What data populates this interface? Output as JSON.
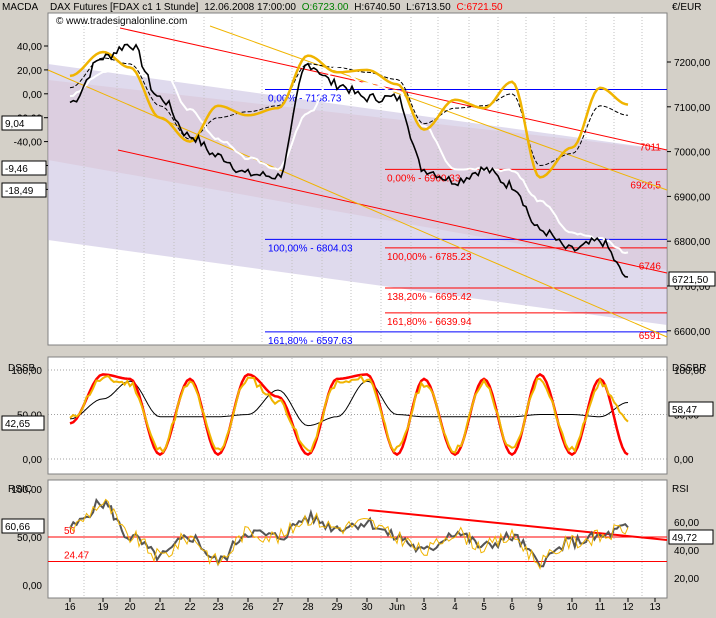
{
  "header": {
    "instrument": "DAX Futures [FDAX c1  1 Stunde]",
    "datetime": "12.06.2008 17:00:00",
    "open": "O:6723.00",
    "high": "H:6740.50",
    "low": "L:6713.50",
    "close": "C:6721.50",
    "watermark": "© www.tradesignalonline.com"
  },
  "colors": {
    "price": "#000000",
    "macd": "#f0b400",
    "signal": "#000000",
    "white_line": "#ffffff",
    "channel": "#ff0000",
    "fib_blue": "#0000ff",
    "fib_red": "#ff0000",
    "stoch_red": "#ff0000",
    "stoch_yellow": "#f0b400",
    "stoch_black": "#000000",
    "rsi_dark": "#555555",
    "rsi_yellow": "#f0b400",
    "bg": "#d4d0c8"
  },
  "panes": {
    "main": {
      "left_label": "MACDA",
      "right_label": "€/EUR",
      "macd_ticks": [
        "40,00",
        "20,00",
        "0,00",
        "-20,00",
        "-40,00",
        "-60,00",
        "-80,00"
      ],
      "price_ticks": [
        "7200,00",
        "7100,00",
        "7000,00",
        "6900,00",
        "6800,00",
        "6700,00",
        "6600,00"
      ],
      "left_badges": [
        "9,04",
        "-9,46",
        "-18,49"
      ],
      "right_badge": "6721,50",
      "fib_blue": [
        {
          "label": "0,00% - 7138.73",
          "price": 7138.73
        },
        {
          "label": "100,00% - 6804.03",
          "price": 6804.03
        },
        {
          "label": "161,80% - 6597.63",
          "price": 6597.63
        }
      ],
      "fib_red": [
        {
          "label": "0,00% - 6960.33",
          "price": 6960.33
        },
        {
          "label": "100,00% - 6785.23",
          "price": 6785.23
        },
        {
          "label": "138,20% - 6695.42",
          "price": 6695.42
        },
        {
          "label": "161,80% - 6639.94",
          "price": 6639.94
        }
      ],
      "level_labels": [
        {
          "text": "7011",
          "price": 7011
        },
        {
          "text": "6926,5",
          "price": 6926.5
        },
        {
          "text": "6746",
          "price": 6746
        },
        {
          "text": "6591",
          "price": 6591
        }
      ]
    },
    "stoch": {
      "left_label": "DSSB",
      "right_label": "DSSBR",
      "left_ticks": [
        "100,00",
        "50,00",
        "0,00"
      ],
      "right_ticks": [
        "100,00",
        "50,00",
        "0,00"
      ],
      "left_badge": "42,65",
      "right_badge": "58,47"
    },
    "rsi": {
      "left_label": "RSIC",
      "right_label": "RSI",
      "left_ticks": [
        "100,00",
        "50,00",
        "0,00"
      ],
      "right_ticks": [
        "60,00",
        "40,00",
        "20,00"
      ],
      "left_badge": "60,66",
      "right_badge": "49,72",
      "line_labels": [
        {
          "text": "50",
          "value": 50
        },
        {
          "text": "24.47",
          "value": 24.47
        }
      ]
    }
  },
  "xaxis": {
    "labels": [
      "16",
      "19",
      "20",
      "21",
      "22",
      "23",
      "26",
      "27",
      "28",
      "29",
      "30",
      "Jun",
      "3",
      "4",
      "5",
      "6",
      "9",
      "10",
      "11",
      "12",
      "13"
    ]
  },
  "chart_data": [
    {
      "type": "line",
      "title": "DAX Futures [FDAX c1  1 Stunde]",
      "ylabel": "€/EUR",
      "categories": [
        "16",
        "19",
        "20",
        "21",
        "22",
        "23",
        "26",
        "27",
        "28",
        "29",
        "30",
        "Jun",
        "3",
        "4",
        "5",
        "6",
        "9",
        "10",
        "11",
        "12"
      ],
      "ylim": [
        6565,
        7265
      ],
      "series": [
        {
          "values": [
            7110,
            7210,
            7240,
            7120,
            7035,
            6990,
            6950,
            6945,
            7195,
            7150,
            7120,
            7120,
            6960,
            6935,
            6960,
            6925,
            6825,
            6780,
            6800,
            6720
          ]
        }
      ]
    },
    {
      "type": "line",
      "title": "",
      "ylabel": "",
      "categories": [
        "16",
        "19",
        "20",
        "21",
        "22",
        "23",
        "26",
        "27",
        "28",
        "29",
        "30",
        "Jun",
        "3",
        "4",
        "5",
        "6",
        "9",
        "10",
        "11",
        "12"
      ],
      "ylim": [
        -93,
        53
      ],
      "series": [
        {
          "values": [
            15,
            35,
            22,
            -20,
            -40,
            -10,
            -18,
            -12,
            32,
            18,
            20,
            8,
            -30,
            -5,
            -12,
            10,
            -70,
            -45,
            5,
            -9
          ]
        },
        {
          "values": [
            5,
            30,
            25,
            -10,
            -38,
            -20,
            -15,
            -10,
            25,
            22,
            18,
            12,
            -25,
            -12,
            -10,
            0,
            -60,
            -50,
            -10,
            -18
          ]
        }
      ]
    },
    {
      "type": "line",
      "title": "",
      "ylabel": "DSSB",
      "categories": [
        "16",
        "19",
        "20",
        "21",
        "22",
        "23",
        "26",
        "27",
        "28",
        "29",
        "30",
        "Jun",
        "3",
        "4",
        "5",
        "6",
        "9",
        "10",
        "11",
        "12"
      ],
      "ylim": [
        -10,
        110
      ],
      "series": [
        {
          "values": [
            40,
            95,
            90,
            5,
            90,
            5,
            95,
            70,
            5,
            90,
            95,
            5,
            90,
            5,
            90,
            5,
            95,
            5,
            90,
            5
          ]
        },
        {
          "values": [
            45,
            90,
            85,
            10,
            85,
            10,
            90,
            65,
            10,
            85,
            90,
            10,
            85,
            10,
            85,
            10,
            90,
            10,
            85,
            42
          ]
        }
      ]
    },
    {
      "type": "line",
      "title": "",
      "ylabel": "RSI",
      "categories": [
        "16",
        "19",
        "20",
        "21",
        "22",
        "23",
        "26",
        "27",
        "28",
        "29",
        "30",
        "Jun",
        "3",
        "4",
        "5",
        "6",
        "9",
        "10",
        "11",
        "12"
      ],
      "ylim": [
        -10,
        110
      ],
      "series": [
        {
          "values": [
            60,
            85,
            50,
            30,
            50,
            25,
            55,
            50,
            70,
            60,
            65,
            50,
            35,
            55,
            40,
            50,
            25,
            45,
            50,
            60
          ]
        }
      ]
    }
  ]
}
